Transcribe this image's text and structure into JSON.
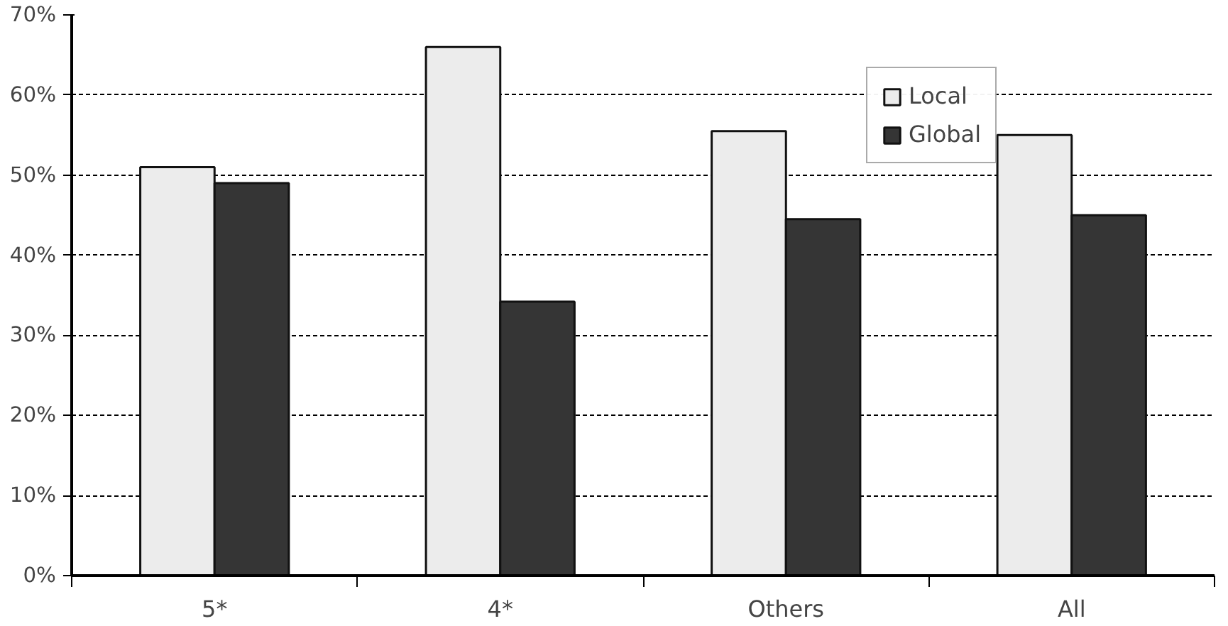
{
  "chart_data": {
    "type": "bar",
    "categories": [
      "5*",
      "4*",
      "Others",
      "All"
    ],
    "series": [
      {
        "name": "Local",
        "color": "#ececec",
        "values": [
          51,
          66,
          55.5,
          55
        ]
      },
      {
        "name": "Global",
        "color": "#353535",
        "values": [
          49,
          34.2,
          44.5,
          45
        ]
      }
    ],
    "ylim": [
      0,
      70
    ],
    "yticks": [
      {
        "value": 0,
        "label": "0%"
      },
      {
        "value": 10,
        "label": "10%"
      },
      {
        "value": 20,
        "label": "20%"
      },
      {
        "value": 30,
        "label": "30%"
      },
      {
        "value": 40,
        "label": "40%"
      },
      {
        "value": 50,
        "label": "50%"
      },
      {
        "value": 60,
        "label": "60%"
      },
      {
        "value": 70,
        "label": "70%"
      }
    ],
    "grid": "y",
    "legend": "top right"
  }
}
